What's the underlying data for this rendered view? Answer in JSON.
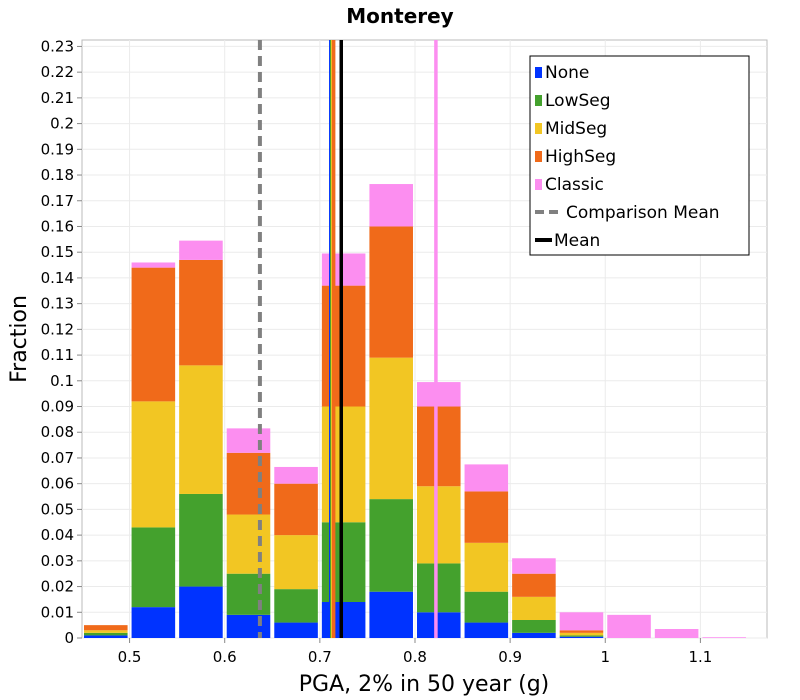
{
  "chart_data": {
    "type": "bar",
    "stacked": true,
    "title": "Monterey",
    "xlabel": "PGA, 2% in 50 year (g)",
    "ylabel": "Fraction",
    "xlim": [
      0.45,
      1.17
    ],
    "ylim": [
      0,
      0.2325
    ],
    "bin_width": 0.05,
    "x_ticks": [
      "0.5",
      "0.6",
      "0.7",
      "0.8",
      "0.9",
      "1",
      "1.1"
    ],
    "y_ticks": [
      "0",
      "0.01",
      "0.02",
      "0.03",
      "0.04",
      "0.05",
      "0.06",
      "0.07",
      "0.08",
      "0.09",
      "0.1",
      "0.11",
      "0.12",
      "0.13",
      "0.14",
      "0.15",
      "0.16",
      "0.17",
      "0.18",
      "0.19",
      "0.2",
      "0.21",
      "0.22",
      "0.23"
    ],
    "bin_centers": [
      0.475,
      0.525,
      0.575,
      0.625,
      0.675,
      0.725,
      0.775,
      0.825,
      0.875,
      0.925,
      0.975,
      1.025,
      1.075,
      1.125
    ],
    "series": [
      {
        "name": "None",
        "color": "#0033ff",
        "values": [
          0.001,
          0.012,
          0.02,
          0.009,
          0.006,
          0.014,
          0.018,
          0.01,
          0.006,
          0.002,
          0.0005,
          0,
          0,
          0
        ]
      },
      {
        "name": "LowSeg",
        "color": "#44a12d",
        "values": [
          0.001,
          0.031,
          0.036,
          0.016,
          0.013,
          0.031,
          0.036,
          0.019,
          0.012,
          0.005,
          0.0005,
          0,
          0,
          0
        ]
      },
      {
        "name": "MidSeg",
        "color": "#f2c623",
        "values": [
          0.001,
          0.049,
          0.05,
          0.023,
          0.021,
          0.045,
          0.055,
          0.03,
          0.019,
          0.009,
          0.001,
          0,
          0,
          0
        ]
      },
      {
        "name": "HighSeg",
        "color": "#f06a1a",
        "values": [
          0.002,
          0.052,
          0.041,
          0.024,
          0.02,
          0.047,
          0.051,
          0.031,
          0.02,
          0.009,
          0.001,
          0,
          0,
          0
        ]
      },
      {
        "name": "Classic",
        "color": "#fc8ef0",
        "values": [
          0,
          0.002,
          0.0075,
          0.0095,
          0.0065,
          0.0125,
          0.0165,
          0.0095,
          0.0105,
          0.006,
          0.007,
          0.009,
          0.0035,
          0.0003
        ]
      }
    ],
    "vertical_lines": [
      {
        "name": "Comparison Mean",
        "x": 0.637,
        "color": "#808080",
        "dashed": true
      },
      {
        "name": "None mean",
        "x": 0.7115,
        "color": "#0033ff",
        "dashed": false
      },
      {
        "name": "LowSeg mean",
        "x": 0.7125,
        "color": "#44a12d",
        "dashed": false
      },
      {
        "name": "MidSeg mean",
        "x": 0.7135,
        "color": "#f2c623",
        "dashed": false
      },
      {
        "name": "HighSeg mean",
        "x": 0.7145,
        "color": "#f06a1a",
        "dashed": false
      },
      {
        "name": "Classic mean",
        "x": 0.822,
        "color": "#fc8ef0",
        "dashed": false
      },
      {
        "name": "Mean",
        "x": 0.7225,
        "color": "#000000",
        "dashed": false
      }
    ],
    "legend": {
      "position": "top-right",
      "entries": [
        {
          "label": "None",
          "kind": "box",
          "color": "#0033ff"
        },
        {
          "label": "LowSeg",
          "kind": "box",
          "color": "#44a12d"
        },
        {
          "label": "MidSeg",
          "kind": "box",
          "color": "#f2c623"
        },
        {
          "label": "HighSeg",
          "kind": "box",
          "color": "#f06a1a"
        },
        {
          "label": "Classic",
          "kind": "box",
          "color": "#fc8ef0"
        },
        {
          "label": "Comparison Mean",
          "kind": "dashed-line",
          "color": "#808080"
        },
        {
          "label": "Mean",
          "kind": "line",
          "color": "#000000"
        }
      ]
    },
    "grid": true
  }
}
